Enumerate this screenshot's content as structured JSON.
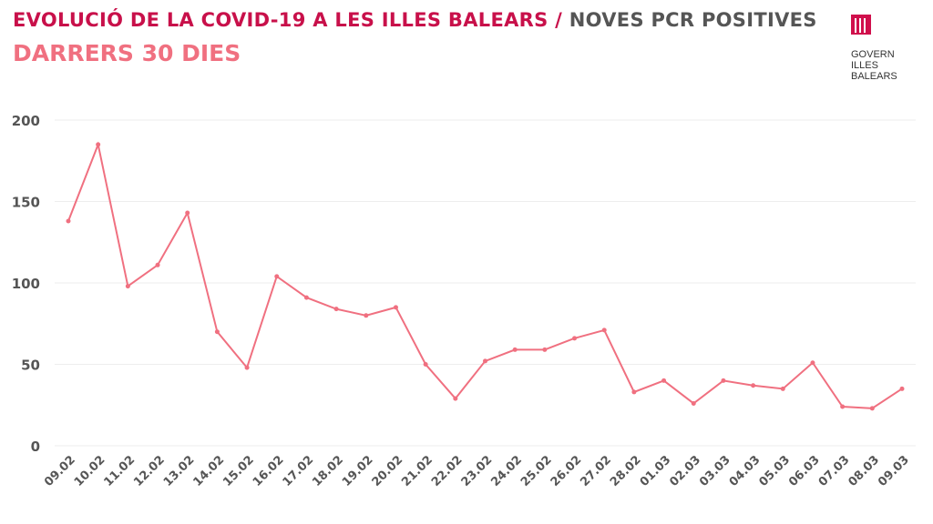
{
  "header": {
    "title_part1": "EVOLUCIÓ DE LA COVID-19 A LES ILLES BALEARS",
    "separator": "/",
    "title_part2": "NOVES PCR POSITIVES",
    "subtitle": "DARRERS 30 DIES"
  },
  "logo": {
    "line1": "GOVERN",
    "line2": "ILLES",
    "line3": "BALEARS"
  },
  "colors": {
    "line": "#f07080",
    "title": "#c8104a"
  },
  "chart_data": {
    "type": "line",
    "title": "NOVES PCR POSITIVES",
    "subtitle": "DARRERS 30 DIES",
    "xlabel": "",
    "ylabel": "",
    "ylim": [
      0,
      200
    ],
    "yticks": [
      0,
      50,
      100,
      150,
      200
    ],
    "grid": true,
    "categories": [
      "09.02",
      "10.02",
      "11.02",
      "12.02",
      "13.02",
      "14.02",
      "15.02",
      "16.02",
      "17.02",
      "18.02",
      "19.02",
      "20.02",
      "21.02",
      "22.02",
      "23.02",
      "24.02",
      "25.02",
      "26.02",
      "27.02",
      "28.02",
      "01.03",
      "02.03",
      "03.03",
      "04.03",
      "05.03",
      "06.03",
      "07.03",
      "08.03",
      "09.03"
    ],
    "series": [
      {
        "name": "Noves PCR positives",
        "values": [
          138,
          185,
          98,
          111,
          143,
          70,
          48,
          104,
          91,
          84,
          80,
          85,
          50,
          29,
          52,
          59,
          59,
          66,
          71,
          33,
          40,
          26,
          40,
          37,
          35,
          51,
          24,
          23,
          35
        ]
      }
    ]
  }
}
